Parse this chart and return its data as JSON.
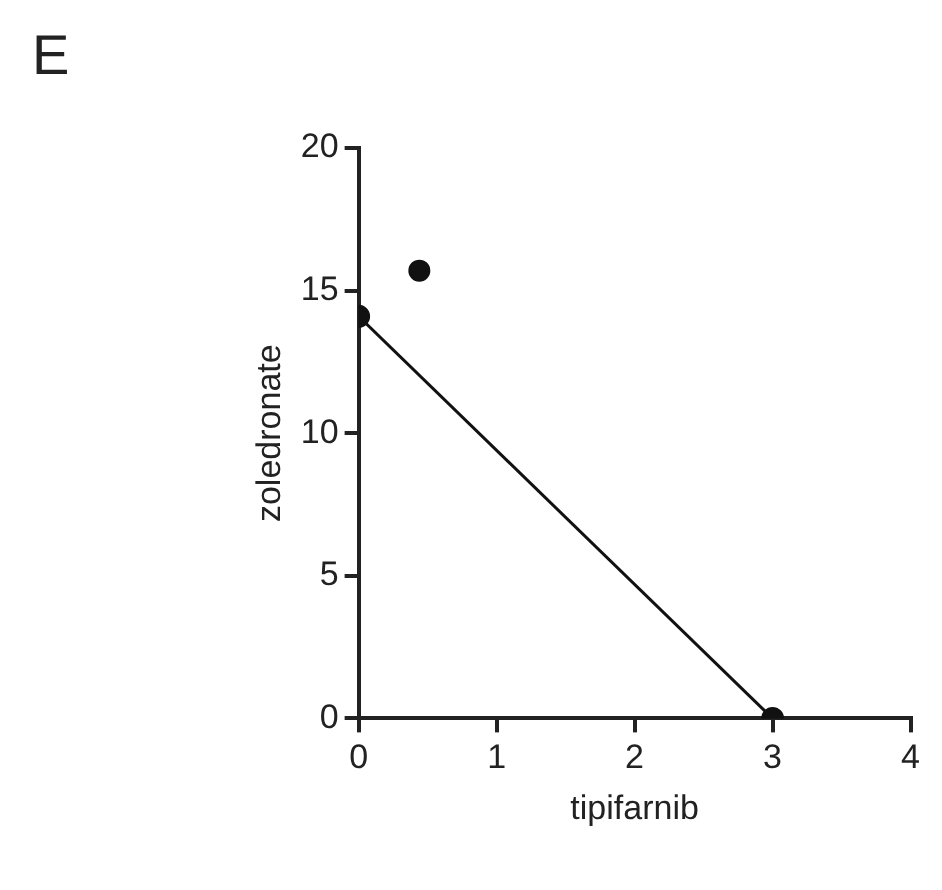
{
  "chart_data": {
    "type": "scatter",
    "title": "E",
    "xlabel": "tipifarnib",
    "ylabel": "zoledronate",
    "xlim": [
      0,
      4
    ],
    "xticks": [
      0,
      1,
      2,
      3,
      4
    ],
    "ylim": [
      0,
      20
    ],
    "yticks": [
      0,
      5,
      10,
      15,
      20
    ],
    "grid": false,
    "legend": false,
    "marker": "circle",
    "series": [
      {
        "type": "line",
        "color": "#111111",
        "x": [
          0,
          3
        ],
        "values": [
          14.1,
          0
        ]
      },
      {
        "color": "#111111",
        "x": [
          0.44
        ],
        "values": [
          15.7
        ]
      }
    ]
  }
}
